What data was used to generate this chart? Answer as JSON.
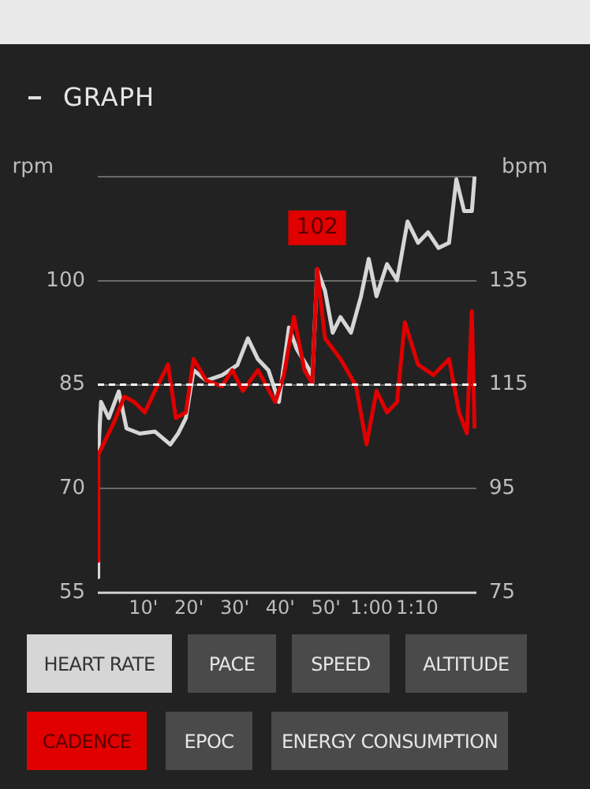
{
  "chart_data": {
    "type": "line",
    "title": "GRAPH",
    "ylabel": "rpm",
    "y2label": "bpm",
    "xlim": [
      0,
      83
    ],
    "xticks": [
      {
        "value": 10,
        "label": "10'"
      },
      {
        "value": 20,
        "label": "20'"
      },
      {
        "value": 30,
        "label": "30'"
      },
      {
        "value": 40,
        "label": "40'"
      },
      {
        "value": 50,
        "label": "50'"
      },
      {
        "value": 60,
        "label": "1:00"
      },
      {
        "value": 70,
        "label": "1:10"
      }
    ],
    "ylim": [
      55,
      115
    ],
    "yticks": [
      55,
      70,
      85,
      100,
      {
        "value": 115,
        "label": null
      }
    ],
    "y2lim": [
      75,
      155
    ],
    "y2ticks": [
      75,
      95,
      115,
      135
    ],
    "grid": "y",
    "legend": "bottom",
    "marker": "none",
    "line_style": "solid",
    "ref_lines": [
      {
        "axis": "y",
        "value": 85,
        "color": "#ffffff",
        "line_style": "dashed"
      }
    ],
    "annotations": [
      {
        "text": "102",
        "x": 48.1,
        "y": 101.7
      },
      "PACE",
      "SPEED",
      "ALTITUDE",
      "EPOC",
      "ENERGY CONSUMPTION"
    ],
    "series": [
      {
        "name": "HEART RATE",
        "color": "#d6d6d6",
        "axis": "y2",
        "x": [
          0,
          0.1,
          0.7,
          2.4,
          4.6,
          6.3,
          9.2,
          12.5,
          15.9,
          17.6,
          19.3,
          21,
          23.8,
          27.2,
          30.6,
          32.9,
          35.1,
          37.4,
          39.7,
          41.9,
          43.6,
          46.4,
          47,
          48.1,
          49.8,
          51.5,
          53.2,
          55.5,
          57.7,
          59.4,
          61.1,
          63.4,
          65.6,
          67.9,
          70.2,
          72.4,
          74.7,
          77,
          78.6,
          80.3,
          82,
          82.6
        ],
        "values": [
          78,
          101.5,
          111.7,
          108.6,
          113.7,
          106.6,
          105.6,
          106,
          103.5,
          105.6,
          108.6,
          117.8,
          115.8,
          116.8,
          118.8,
          123.9,
          119.9,
          117.8,
          111.7,
          126,
          121.9,
          117.8,
          115.3,
          137.2,
          133.1,
          125,
          128,
          125,
          132,
          139.2,
          132,
          138.2,
          135.1,
          146.4,
          142.3,
          144.3,
          141.3,
          142.3,
          154.5,
          148.4,
          148.4,
          155
        ]
      },
      {
        "name": "CADENCE",
        "color": "#e00000",
        "axis": "y",
        "x": [
          0,
          0.1,
          1.2,
          3.5,
          5.8,
          8,
          10.3,
          12.5,
          15.4,
          17.1,
          19.3,
          21,
          23.8,
          27.2,
          29.5,
          31.8,
          35.1,
          38.9,
          40.8,
          43,
          45.3,
          47,
          48.1,
          49.8,
          53.2,
          56.6,
          58.9,
          61.1,
          63.4,
          65.6,
          67.3,
          70.2,
          73.6,
          77,
          79.2,
          80.9,
          82,
          82.6
        ],
        "values": [
          59.6,
          74.9,
          76.4,
          79.5,
          83.3,
          82.5,
          81,
          84.1,
          87.9,
          80.2,
          81,
          88.7,
          85.6,
          84.8,
          87.1,
          84.1,
          87.1,
          82.5,
          86.4,
          94.8,
          87.1,
          85.2,
          101.7,
          91.7,
          88.7,
          84.8,
          76.4,
          84.1,
          81,
          82.5,
          94,
          87.9,
          86.4,
          88.7,
          81,
          78,
          95.6,
          78.7
        ]
      }
    ]
  }
}
